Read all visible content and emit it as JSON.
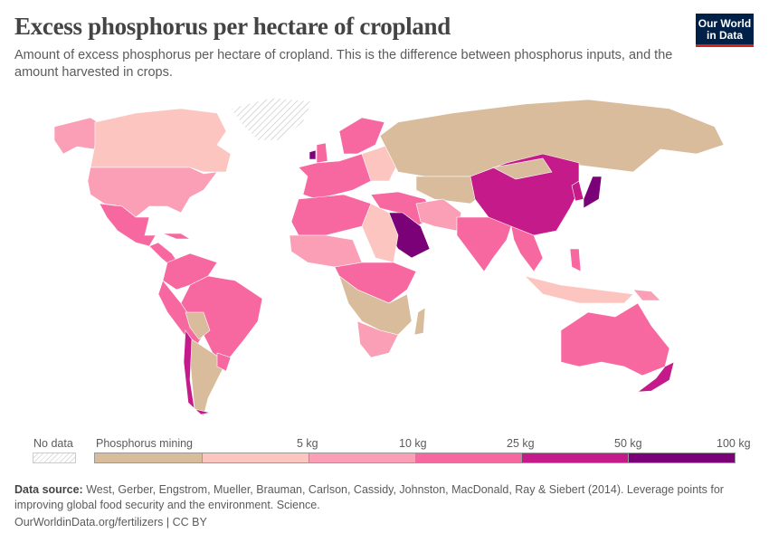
{
  "header": {
    "title": "Excess phosphorus per hectare of cropland",
    "subtitle": "Amount of excess phosphorus per hectare of cropland. This is the difference between phosphorus inputs, and the amount harvested in crops.",
    "logo_text": "Our World in Data"
  },
  "legend": {
    "no_data_label": "No data",
    "no_data_pattern": "hatched",
    "bins": [
      {
        "label": "Phosphorus mining",
        "color": "#d9bc9b"
      },
      {
        "label": "5 kg",
        "color": "#fcc5c0"
      },
      {
        "label": "10 kg",
        "color": "#fa9fb5"
      },
      {
        "label": "25 kg",
        "color": "#f768a1"
      },
      {
        "label": "50 kg",
        "color": "#c51b8a"
      },
      {
        "label": "100 kg",
        "color": "#7a0177"
      }
    ]
  },
  "footer": {
    "source_label": "Data source:",
    "source_text": "West, Gerber, Engstrom, Mueller, Brauman, Carlson, Cassidy, Johnston, MacDonald, Ray & Siebert (2014). Leverage points for improving global food security and the environment. Science.",
    "url": "OurWorldinData.org/fertilizers | CC BY"
  }
}
